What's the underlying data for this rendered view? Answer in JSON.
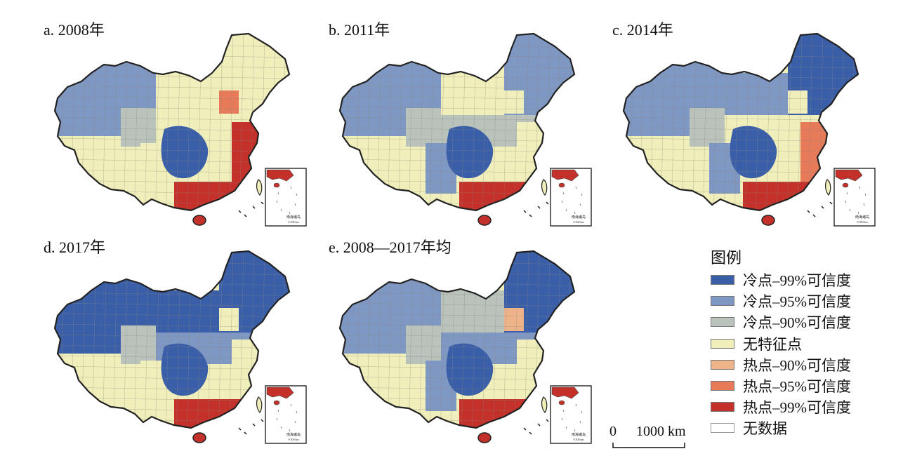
{
  "panels": [
    {
      "title": "a. 2008年",
      "inset_label": "南海诸岛",
      "inset_scale": "0 500 km",
      "regions": {
        "ne": "none",
        "north": "none",
        "nw": "cold95",
        "xz": "none",
        "qh": "cold90",
        "sc": "cold99",
        "cen": "none",
        "east": "hot99",
        "south": "hot99",
        "hn": "hot99",
        "yg": "none",
        "extra": "hot95"
      }
    },
    {
      "title": "b. 2011年",
      "inset_label": "南海诸岛",
      "inset_scale": "0 500 km",
      "regions": {
        "ne": "cold95",
        "north": "none",
        "nw": "cold95",
        "xz": "none",
        "qh": "cold90",
        "sc": "cold99",
        "cen": "cold90",
        "east": "none",
        "south": "hot99",
        "hn": "hot99",
        "yg": "cold95",
        "extra": "none"
      }
    },
    {
      "title": "c. 2014年",
      "inset_label": "南海诸岛",
      "inset_scale": "0 500 km",
      "regions": {
        "ne": "cold99",
        "north": "cold95",
        "nw": "cold95",
        "xz": "none",
        "qh": "cold90",
        "sc": "cold99",
        "cen": "none",
        "east": "hot95",
        "south": "hot99",
        "hn": "hot99",
        "yg": "cold95",
        "extra": "none"
      }
    },
    {
      "title": "d. 2017年",
      "inset_label": "南海诸岛",
      "inset_scale": "0 500 km",
      "regions": {
        "ne": "cold99",
        "north": "cold99",
        "nw": "cold99",
        "xz": "none",
        "qh": "cold90",
        "sc": "cold99",
        "cen": "cold95",
        "east": "none",
        "south": "hot99",
        "hn": "hot99",
        "yg": "none",
        "extra": "none"
      }
    },
    {
      "title": "e. 2008—2017年均",
      "inset_label": "南海诸岛",
      "inset_scale": "0 500 km",
      "regions": {
        "ne": "cold99",
        "north": "cold90",
        "nw": "cold95",
        "xz": "none",
        "qh": "cold90",
        "sc": "cold99",
        "cen": "cold95",
        "east": "none",
        "south": "hot99",
        "hn": "hot99",
        "yg": "cold95",
        "extra": "hot90"
      }
    }
  ],
  "legend": {
    "title": "图例",
    "items": [
      {
        "key": "cold99",
        "label": "冷点–99%可信度",
        "color": "#3a5ea8"
      },
      {
        "key": "cold95",
        "label": "冷点–95%可信度",
        "color": "#7f97c3"
      },
      {
        "key": "cold90",
        "label": "冷点–90%可信度",
        "color": "#b9c3bb"
      },
      {
        "key": "none",
        "label": "无特征点",
        "color": "#f0efbb"
      },
      {
        "key": "hot90",
        "label": "热点–90%可信度",
        "color": "#efb389"
      },
      {
        "key": "hot95",
        "label": "热点–95%可信度",
        "color": "#e67a59"
      },
      {
        "key": "hot99",
        "label": "热点–99%可信度",
        "color": "#c4302a"
      },
      {
        "key": "nodata",
        "label": "无数据",
        "color": "#ffffff"
      }
    ]
  },
  "scale_bar": {
    "zero": "0",
    "text": "1000 km"
  }
}
